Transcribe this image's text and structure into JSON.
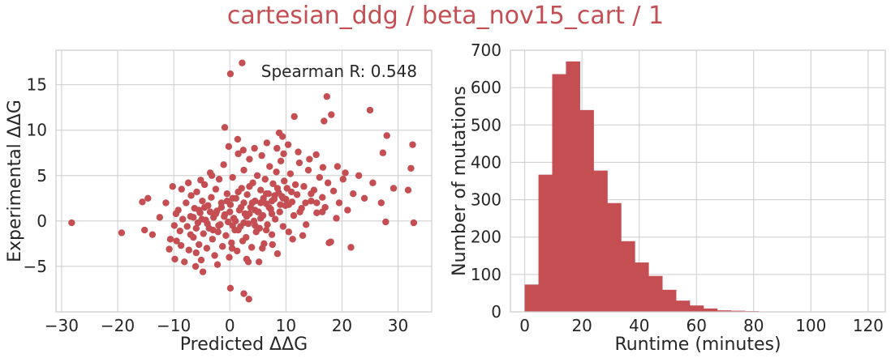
{
  "suptitle": "cartesian_ddg / beta_nov15_cart / 1",
  "colors": {
    "accent": "#c44e52",
    "grid": "#cccccc",
    "axis_spine": "#cccccc",
    "text": "#262626"
  },
  "chart_data": [
    {
      "type": "scatter",
      "xlabel": "Predicted ΔΔG",
      "ylabel": "Experimental ΔΔG",
      "annotation": "Spearman R: 0.548",
      "annotation_position": "top-right",
      "xlim": [
        -31,
        36
      ],
      "ylim": [
        -10.0,
        18.8
      ],
      "xticks": [
        -30,
        -20,
        -10,
        0,
        10,
        20,
        30
      ],
      "xtick_labels": [
        "−30",
        "−20",
        "−10",
        "0",
        "10",
        "20",
        "30"
      ],
      "yticks": [
        -5,
        0,
        5,
        10,
        15
      ],
      "ytick_labels": [
        "−5",
        "0",
        "5",
        "10",
        "15"
      ],
      "grid": true,
      "points": [
        [
          -28.2,
          -0.2
        ],
        [
          -19.3,
          -1.3
        ],
        [
          -15.6,
          2.1
        ],
        [
          -14.6,
          2.5
        ],
        [
          -13.8,
          -1.5
        ],
        [
          -10.8,
          -3.1
        ],
        [
          -10.2,
          3.8
        ],
        [
          -9.8,
          -4.2
        ],
        [
          -9.6,
          0.8
        ],
        [
          -9.5,
          -2.2
        ],
        [
          -9.2,
          1.2
        ],
        [
          -8.9,
          -1.1
        ],
        [
          -8.7,
          -2.7
        ],
        [
          -8.4,
          0.2
        ],
        [
          -8.1,
          -4.5
        ],
        [
          -7.8,
          2.0
        ],
        [
          -7.6,
          -0.6
        ],
        [
          -7.3,
          -3.2
        ],
        [
          -7.0,
          0.5
        ],
        [
          -6.9,
          2.8
        ],
        [
          -6.5,
          -1.8
        ],
        [
          -6.3,
          1.4
        ],
        [
          -6.1,
          -5.0
        ],
        [
          -5.9,
          3.2
        ],
        [
          -5.7,
          -0.2
        ],
        [
          -5.5,
          -2.6
        ],
        [
          -5.3,
          0.9
        ],
        [
          -5.1,
          -4.3
        ],
        [
          -4.9,
          2.2
        ],
        [
          -4.7,
          -1.4
        ],
        [
          -4.5,
          4.0
        ],
        [
          -4.3,
          0.1
        ],
        [
          -4.1,
          -3.0
        ],
        [
          -3.9,
          1.7
        ],
        [
          -3.7,
          -0.8
        ],
        [
          -3.5,
          5.3
        ],
        [
          -3.3,
          2.6
        ],
        [
          -3.1,
          -2.0
        ],
        [
          -2.9,
          0.4
        ],
        [
          -2.7,
          -3.8
        ],
        [
          -2.5,
          3.5
        ],
        [
          -2.3,
          1.1
        ],
        [
          -2.1,
          -1.2
        ],
        [
          -1.9,
          4.6
        ],
        [
          -1.7,
          -0.4
        ],
        [
          -1.5,
          2.0
        ],
        [
          -1.3,
          -2.8
        ],
        [
          -1.1,
          6.2
        ],
        [
          -0.9,
          0.7
        ],
        [
          -0.7,
          -1.6
        ],
        [
          -0.5,
          3.0
        ],
        [
          -0.3,
          -0.1
        ],
        [
          -0.1,
          -4.0
        ],
        [
          0.1,
          1.8
        ],
        [
          0.3,
          -2.4
        ],
        [
          0.5,
          4.8
        ],
        [
          0.7,
          0.3
        ],
        [
          0.9,
          -1.0
        ],
        [
          1.1,
          2.5
        ],
        [
          1.3,
          -3.3
        ],
        [
          1.5,
          7.4
        ],
        [
          1.7,
          1.2
        ],
        [
          1.9,
          -0.6
        ],
        [
          2.1,
          3.6
        ],
        [
          2.3,
          -2.2
        ],
        [
          2.5,
          5.6
        ],
        [
          2.7,
          0.8
        ],
        [
          2.9,
          -1.8
        ],
        [
          3.1,
          2.9
        ],
        [
          3.3,
          -0.3
        ],
        [
          3.5,
          6.8
        ],
        [
          3.7,
          1.5
        ],
        [
          3.9,
          -2.9
        ],
        [
          4.1,
          4.2
        ],
        [
          4.3,
          0.0
        ],
        [
          4.5,
          2.2
        ],
        [
          4.7,
          -1.2
        ],
        [
          4.9,
          5.0
        ],
        [
          5.1,
          1.0
        ],
        [
          5.3,
          -0.8
        ],
        [
          5.5,
          3.4
        ],
        [
          5.7,
          7.2
        ],
        [
          5.9,
          0.6
        ],
        [
          6.1,
          -2.5
        ],
        [
          6.3,
          4.6
        ],
        [
          6.5,
          1.9
        ],
        [
          6.7,
          -0.4
        ],
        [
          6.9,
          3.0
        ],
        [
          7.1,
          6.0
        ],
        [
          7.3,
          1.3
        ],
        [
          7.5,
          -1.5
        ],
        [
          7.7,
          4.1
        ],
        [
          7.9,
          2.4
        ],
        [
          8.1,
          0.2
        ],
        [
          8.3,
          5.4
        ],
        [
          8.5,
          -3.6
        ],
        [
          8.7,
          3.1
        ],
        [
          8.9,
          1.0
        ],
        [
          9.1,
          6.6
        ],
        [
          9.3,
          2.7
        ],
        [
          9.5,
          -0.6
        ],
        [
          9.7,
          4.4
        ],
        [
          9.9,
          1.7
        ],
        [
          10.2,
          3.6
        ],
        [
          10.5,
          -1.2
        ],
        [
          10.8,
          5.2
        ],
        [
          11.1,
          2.1
        ],
        [
          11.4,
          0.6
        ],
        [
          11.7,
          4.0
        ],
        [
          12.0,
          2.9
        ],
        [
          12.4,
          6.4
        ],
        [
          12.8,
          1.4
        ],
        [
          13.2,
          3.8
        ],
        [
          13.6,
          -0.4
        ],
        [
          14.0,
          5.6
        ],
        [
          14.5,
          2.2
        ],
        [
          15.0,
          3.4
        ],
        [
          15.5,
          0.9
        ],
        [
          16.0,
          4.8
        ],
        [
          16.5,
          2.6
        ],
        [
          17.0,
          1.5
        ],
        [
          17.5,
          4.2
        ],
        [
          18.0,
          -2.3
        ],
        [
          18.5,
          3.3
        ],
        [
          19.0,
          0.3
        ],
        [
          19.5,
          2.0
        ],
        [
          20.2,
          4.6
        ],
        [
          21.0,
          1.2
        ],
        [
          22.0,
          3.0
        ],
        [
          24.0,
          2.5
        ],
        [
          25.5,
          4.2
        ],
        [
          27.0,
          2.0
        ],
        [
          2.2,
          17.4
        ],
        [
          0.1,
          16.2
        ],
        [
          17.3,
          13.7
        ],
        [
          25.0,
          12.2
        ],
        [
          18.1,
          11.7
        ],
        [
          11.5,
          11.5
        ],
        [
          16.8,
          11.0
        ],
        [
          -0.9,
          10.3
        ],
        [
          8.8,
          9.7
        ],
        [
          9.4,
          9.3
        ],
        [
          28.0,
          9.4
        ],
        [
          27.3,
          7.5
        ],
        [
          32.6,
          8.4
        ],
        [
          32.3,
          5.8
        ],
        [
          29.2,
          3.6
        ],
        [
          31.8,
          3.4
        ],
        [
          32.8,
          -0.2
        ],
        [
          27.8,
          -0.1
        ],
        [
          21.6,
          -2.9
        ],
        [
          17.7,
          -2.4
        ],
        [
          5.2,
          -4.5
        ],
        [
          3.3,
          -4.5
        ],
        [
          0.1,
          -7.4
        ],
        [
          2.5,
          -8.0
        ],
        [
          3.4,
          -8.6
        ],
        [
          -15.2,
          -1.0
        ],
        [
          -12.5,
          0.4
        ],
        [
          -11.4,
          2.0
        ],
        [
          -10.6,
          -2.0
        ],
        [
          -9.9,
          -0.5
        ],
        [
          -8.6,
          3.5
        ],
        [
          -7.4,
          4.2
        ],
        [
          -6.0,
          -3.5
        ],
        [
          -5.2,
          4.5
        ],
        [
          -4.8,
          -5.6
        ],
        [
          -3.2,
          5.0
        ],
        [
          -2.2,
          -4.8
        ],
        [
          -0.2,
          8.2
        ],
        [
          0.4,
          -3.0
        ],
        [
          1.4,
          9.0
        ],
        [
          2.4,
          7.8
        ],
        [
          3.0,
          -4.2
        ],
        [
          4.4,
          8.0
        ],
        [
          5.8,
          -3.0
        ],
        [
          6.6,
          8.6
        ],
        [
          7.6,
          -2.6
        ],
        [
          8.4,
          8.0
        ],
        [
          9.6,
          7.4
        ],
        [
          10.4,
          8.4
        ],
        [
          11.2,
          -2.0
        ],
        [
          12.2,
          7.6
        ],
        [
          13.0,
          -1.6
        ],
        [
          14.2,
          6.8
        ],
        [
          15.4,
          7.3
        ],
        [
          16.6,
          5.9
        ],
        [
          19.2,
          6.0
        ],
        [
          20.6,
          5.3
        ],
        [
          23.0,
          5.0
        ],
        [
          -1.0,
          0.5
        ],
        [
          0.0,
          1.0
        ],
        [
          1.0,
          0.0
        ],
        [
          2.0,
          1.5
        ],
        [
          3.0,
          0.5
        ],
        [
          4.0,
          2.0
        ],
        [
          5.0,
          1.0
        ],
        [
          6.0,
          2.5
        ],
        [
          7.0,
          1.5
        ],
        [
          8.0,
          2.8
        ],
        [
          9.0,
          1.8
        ],
        [
          10.0,
          2.4
        ],
        [
          11.0,
          3.2
        ],
        [
          -2.0,
          -0.5
        ],
        [
          -3.0,
          -1.0
        ],
        [
          -4.0,
          -0.3
        ],
        [
          -5.0,
          0.2
        ],
        [
          -6.0,
          -0.8
        ],
        [
          -7.0,
          -1.5
        ],
        [
          0.5,
          2.5
        ],
        [
          1.5,
          3.2
        ],
        [
          2.5,
          2.0
        ],
        [
          3.5,
          3.8
        ],
        [
          4.5,
          1.2
        ],
        [
          5.5,
          2.0
        ],
        [
          6.5,
          3.0
        ],
        [
          7.5,
          2.2
        ],
        [
          8.5,
          3.6
        ],
        [
          9.5,
          2.5
        ],
        [
          10.5,
          1.8
        ],
        [
          -1.5,
          1.5
        ],
        [
          -0.5,
          2.2
        ],
        [
          0.5,
          -0.5
        ],
        [
          1.5,
          -1.0
        ],
        [
          2.5,
          -0.2
        ],
        [
          3.5,
          0.8
        ],
        [
          4.5,
          -0.5
        ],
        [
          5.5,
          0.3
        ],
        [
          6.5,
          -1.0
        ],
        [
          7.5,
          0.8
        ],
        [
          -2.5,
          0.8
        ],
        [
          -3.5,
          1.0
        ],
        [
          -4.5,
          1.5
        ],
        [
          -5.5,
          1.2
        ],
        [
          -6.5,
          0.4
        ],
        [
          12.5,
          1.0
        ],
        [
          13.5,
          2.0
        ],
        [
          14.5,
          3.0
        ],
        [
          15.5,
          2.0
        ],
        [
          16.5,
          1.0
        ]
      ]
    },
    {
      "type": "bar",
      "subtype": "histogram",
      "xlabel": "Runtime (minutes)",
      "ylabel": "Number of mutations",
      "xlim": [
        -5,
        126
      ],
      "ylim": [
        0,
        700
      ],
      "xticks": [
        0,
        20,
        40,
        60,
        80,
        100,
        120
      ],
      "xtick_labels": [
        "0",
        "20",
        "40",
        "60",
        "80",
        "100",
        "120"
      ],
      "yticks": [
        0,
        100,
        200,
        300,
        400,
        500,
        600,
        700
      ],
      "ytick_labels": [
        "0",
        "100",
        "200",
        "300",
        "400",
        "500",
        "600",
        "700"
      ],
      "grid": true,
      "bin_edges": [
        0,
        4.8,
        9.6,
        14.4,
        19.2,
        24.0,
        28.8,
        33.6,
        38.4,
        43.2,
        48.0,
        52.8,
        57.6,
        62.4,
        67.2,
        72.0,
        76.8,
        81.6,
        86.4,
        91.2,
        96.0
      ],
      "values": [
        73,
        367,
        636,
        670,
        540,
        378,
        291,
        189,
        132,
        96,
        59,
        30,
        17,
        9,
        4,
        3,
        2,
        1,
        1,
        1
      ]
    }
  ]
}
